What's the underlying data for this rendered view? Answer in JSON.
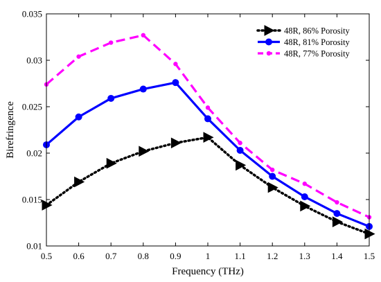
{
  "chart_data": {
    "type": "line",
    "xlabel": "Frequency (THz)",
    "ylabel": "Birefringence",
    "xlim": [
      0.5,
      1.5
    ],
    "ylim": [
      0.01,
      0.035
    ],
    "x_ticks": [
      "0.5",
      "0.6",
      "0.7",
      "0.8",
      "0.9",
      "1",
      "1.1",
      "1.2",
      "1.3",
      "1.4",
      "1.5"
    ],
    "y_ticks": [
      "0.01",
      "0.015",
      "0.02",
      "0.025",
      "0.03",
      "0.035"
    ],
    "grid": false,
    "legend_position": "top-right",
    "series": [
      {
        "name": "48R, 86% Porosity",
        "color": "#000000",
        "line_style": "dotted",
        "marker": "right-triangle",
        "x": [
          0.5,
          0.6,
          0.7,
          0.8,
          0.9,
          1.0,
          1.1,
          1.2,
          1.3,
          1.4,
          1.5
        ],
        "y": [
          0.0144,
          0.0169,
          0.0189,
          0.0202,
          0.0211,
          0.0217,
          0.0187,
          0.0163,
          0.0143,
          0.0126,
          0.0113
        ]
      },
      {
        "name": "48R, 81% Porosity",
        "color": "#0000ff",
        "line_style": "solid",
        "marker": "circle",
        "x": [
          0.5,
          0.6,
          0.7,
          0.8,
          0.9,
          1.0,
          1.1,
          1.2,
          1.3,
          1.4,
          1.5
        ],
        "y": [
          0.0209,
          0.0239,
          0.0259,
          0.0269,
          0.0276,
          0.0237,
          0.0203,
          0.0175,
          0.0153,
          0.0135,
          0.0121
        ]
      },
      {
        "name": "48R, 77% Porosity",
        "color": "#ff00ff",
        "line_style": "dashed",
        "marker": "small-circle",
        "x": [
          0.5,
          0.6,
          0.7,
          0.8,
          0.9,
          1.0,
          1.1,
          1.2,
          1.3,
          1.4,
          1.5
        ],
        "y": [
          0.0274,
          0.0304,
          0.0319,
          0.0327,
          0.0296,
          0.0249,
          0.0211,
          0.0182,
          0.0167,
          0.0147,
          0.0131
        ]
      }
    ]
  }
}
